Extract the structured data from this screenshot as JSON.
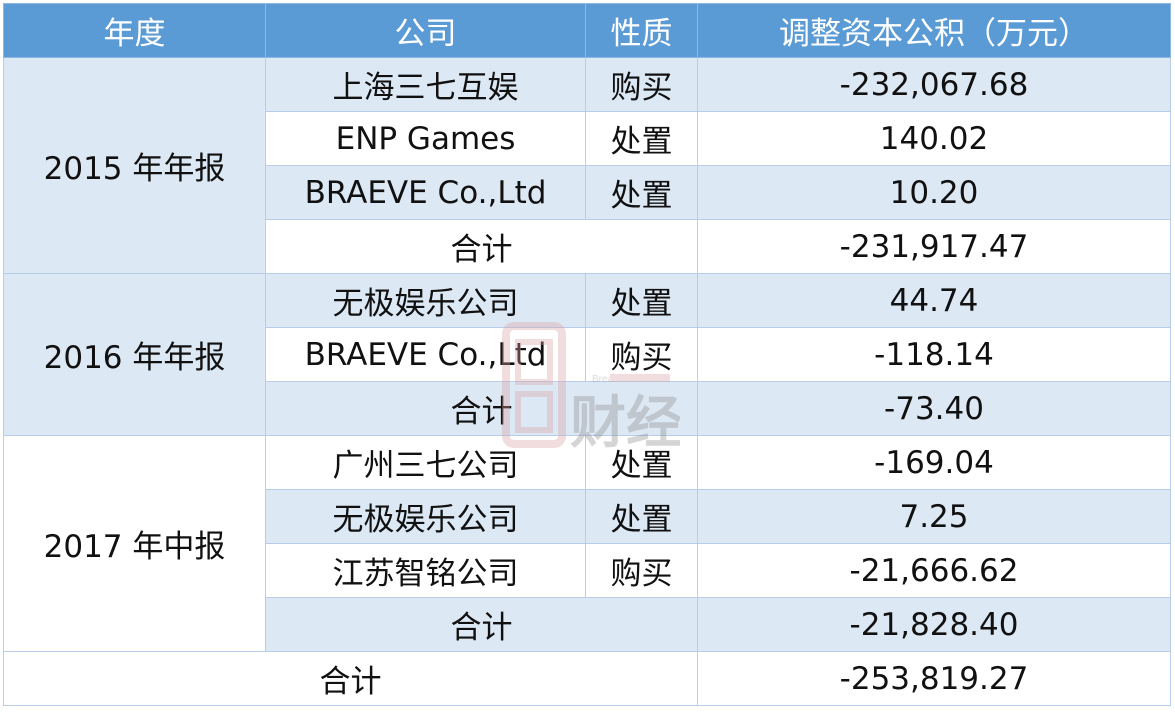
{
  "header": [
    "年度",
    "公司",
    "性质",
    "调整资本公积（万元）"
  ],
  "groups": [
    {
      "period": "2015 年年报",
      "rows": [
        {
          "company": "上海三七互娱",
          "type": "购买",
          "value": "-232,067.68"
        },
        {
          "company": "ENP Games",
          "type": "处置",
          "value": "140.02"
        },
        {
          "company": "BRAEVE Co.,Ltd",
          "type": "处置",
          "value": "10.20"
        }
      ],
      "subtotal_label": "合计",
      "subtotal": "-231,917.47"
    },
    {
      "period": "2016 年年报",
      "rows": [
        {
          "company": "无极娱乐公司",
          "type": "处置",
          "value": "44.74"
        },
        {
          "company": "BRAEVE Co.,Ltd",
          "type": "购买",
          "value": "-118.14"
        }
      ],
      "subtotal_label": "合计",
      "subtotal": "-73.40"
    },
    {
      "period": "2017 年中报",
      "rows": [
        {
          "company": "广州三七公司",
          "type": "处置",
          "value": "-169.04"
        },
        {
          "company": "无极娱乐公司",
          "type": "处置",
          "value": "7.25"
        },
        {
          "company": "江苏智铭公司",
          "type": "购买",
          "value": "-21,666.62"
        }
      ],
      "subtotal_label": "合计",
      "subtotal": "-21,828.40"
    }
  ],
  "total": {
    "label": "合计",
    "value": "-253,819.27"
  },
  "watermark": {
    "text": "面包财经",
    "subtext": "Bread Finance"
  },
  "colors": {
    "header": "#5b9bd5",
    "stripe": "#dde8f5",
    "grid": "#b9cde8"
  }
}
